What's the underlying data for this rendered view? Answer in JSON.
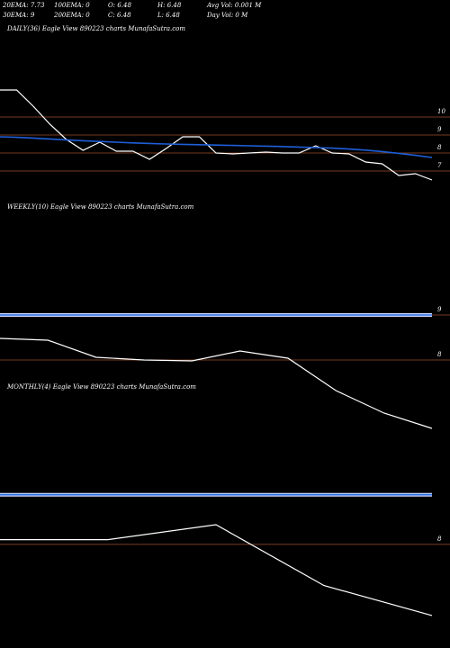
{
  "header": [
    "20EMA: 7.73",
    "100EMA: 0",
    "O: 6.48",
    "H: 6.48",
    "Avg Vol: 0.001 M",
    "30EMA: 9",
    "200EMA: 0",
    "C: 6.48",
    "L: 6.48",
    "Day Vol: 0  M"
  ],
  "chart_data": [
    {
      "type": "line",
      "title": "DAILY(36) Eagle  View  890223 charts MunafaSutra.com",
      "ylim": [
        5.75,
        14.5
      ],
      "yticks": [
        10,
        9,
        8,
        7
      ],
      "tick_line_color": "#a0522d",
      "series": [
        {
          "color": "#ffffff",
          "values": [
            11.5,
            11.5,
            10.6,
            9.6,
            8.75,
            8.15,
            8.6,
            8.1,
            8.1,
            7.65,
            8.25,
            8.9,
            8.9,
            8.0,
            7.95,
            8.0,
            8.05,
            8.0,
            8.0,
            8.4,
            8.0,
            7.95,
            7.5,
            7.4,
            6.75,
            6.85,
            6.5
          ]
        },
        {
          "color": "#1f5fd8",
          "values": [
            8.9,
            8.87,
            8.83,
            8.78,
            8.73,
            8.68,
            8.64,
            8.6,
            8.56,
            8.53,
            8.5,
            8.48,
            8.46,
            8.44,
            8.42,
            8.4,
            8.38,
            8.36,
            8.33,
            8.3,
            8.27,
            8.22,
            8.16,
            8.08,
            7.98,
            7.87,
            7.75
          ]
        }
      ]
    },
    {
      "type": "line",
      "title": "WEEKLY(10) Eagle  View  890223 charts MunafaSutra.com",
      "ylim": [
        6.4,
        11.2
      ],
      "yticks": [
        9,
        8
      ],
      "tick_line_color": "#a0522d",
      "series": [
        {
          "color": "#ffffff",
          "values": [
            8.48,
            8.44,
            8.06,
            8.0,
            7.98,
            8.2,
            8.04,
            7.32,
            6.82,
            6.48
          ]
        },
        {
          "color": "#2f6fe0",
          "values": [
            9,
            9,
            9,
            9,
            9,
            9,
            9,
            9,
            9,
            9
          ]
        }
      ]
    },
    {
      "type": "line",
      "title": "MONTHLY(4) Eagle  View  890223 charts MunafaSutra.com",
      "ylim": [
        6.17,
        11.17
      ],
      "yticks": [
        8
      ],
      "tick_line_color": "#a0522d",
      "series": [
        {
          "color": "#ffffff",
          "values": [
            8.1,
            8.1,
            8.42,
            7.12,
            6.48
          ]
        },
        {
          "color": "#2f6fe0",
          "values": [
            9.06,
            9.06,
            9.06,
            9.06,
            9.06
          ]
        }
      ]
    }
  ]
}
